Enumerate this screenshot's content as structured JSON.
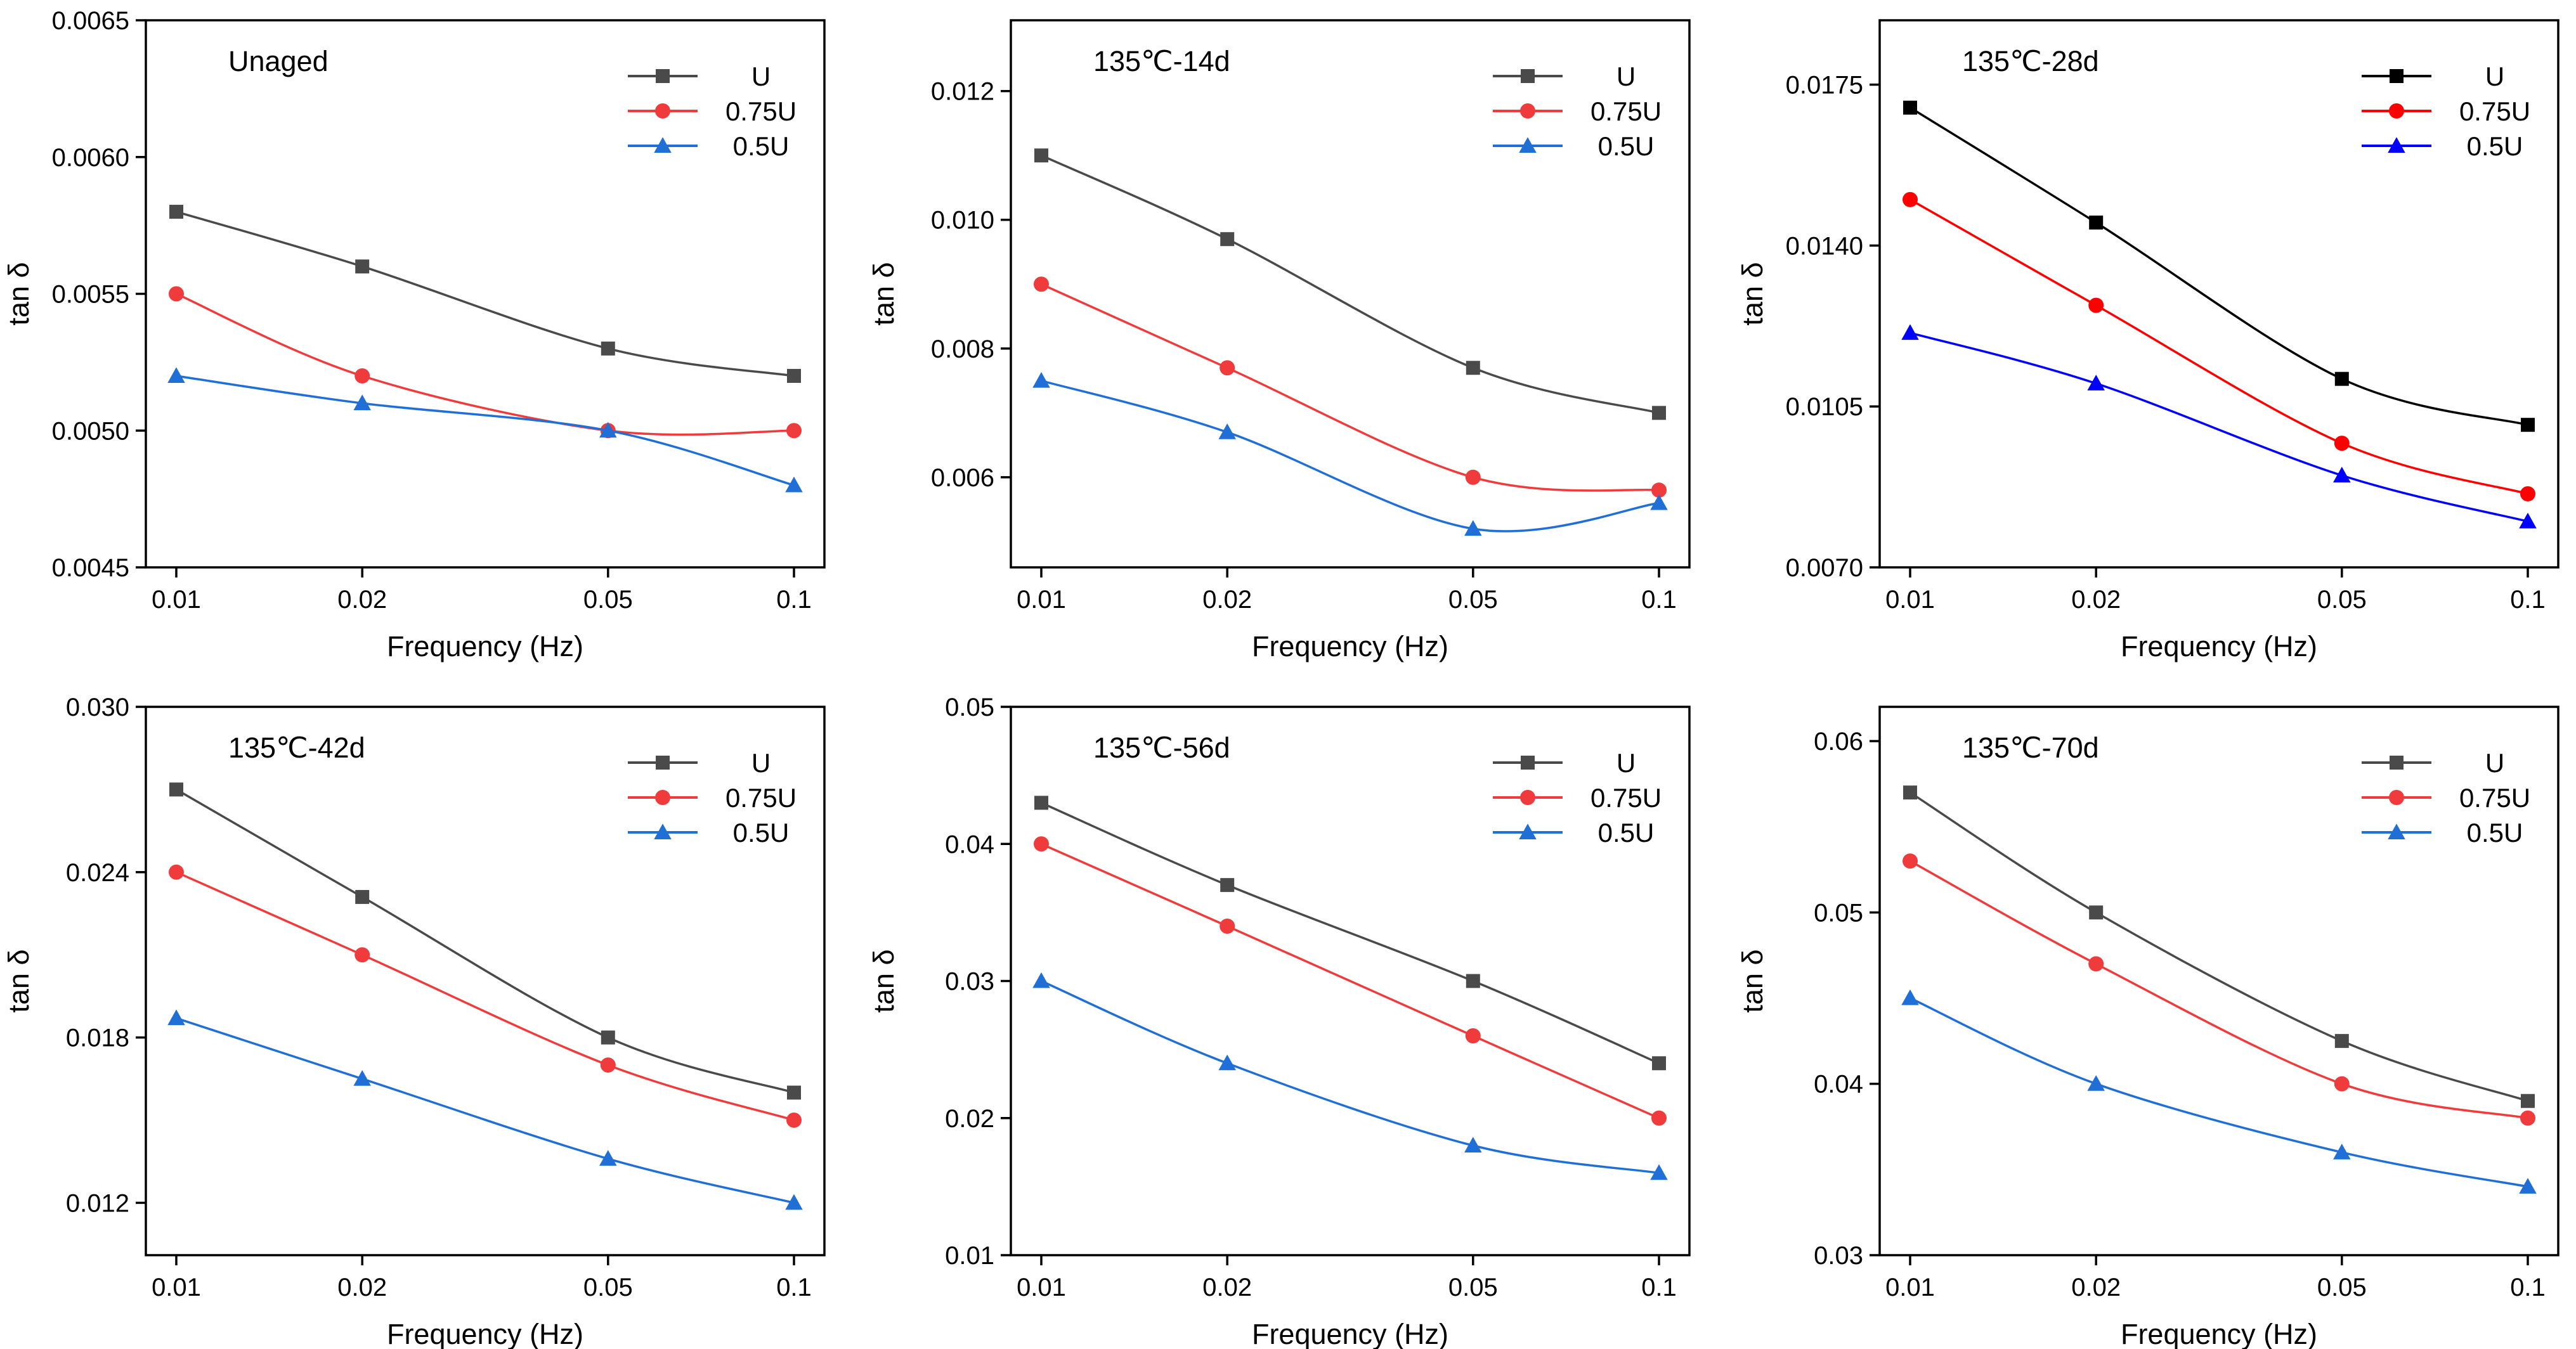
{
  "chart_data": [
    {
      "type": "line",
      "title": "Unaged",
      "xlabel": "Frequency (Hz)",
      "ylabel": "tan δ",
      "xscale": "log",
      "x": [
        0.01,
        0.02,
        0.05,
        0.1
      ],
      "x_tick_labels": [
        "0.01",
        "0.02",
        "0.05",
        "0.1"
      ],
      "ylim": [
        0.0045,
        0.0065
      ],
      "y_ticks": [
        0.0045,
        0.005,
        0.0055,
        0.006,
        0.0065
      ],
      "y_tick_labels": [
        "0.0045",
        "0.0050",
        "0.0055",
        "0.0060",
        "0.0065"
      ],
      "legend_position": "top-right",
      "series": [
        {
          "name": "U",
          "color": "#4a4a4a",
          "marker": "square",
          "values": [
            0.0058,
            0.0056,
            0.0053,
            0.0052
          ]
        },
        {
          "name": "0.75U",
          "color": "#ef3b3b",
          "marker": "circle",
          "values": [
            0.0055,
            0.0052,
            0.005,
            0.005
          ]
        },
        {
          "name": "0.5U",
          "color": "#1f6fd6",
          "marker": "triangle",
          "values": [
            0.0052,
            0.0051,
            0.005,
            0.0048
          ]
        }
      ]
    },
    {
      "type": "line",
      "title": "135℃-14d",
      "xlabel": "Frequency (Hz)",
      "ylabel": "tan δ",
      "xscale": "log",
      "x": [
        0.01,
        0.02,
        0.05,
        0.1
      ],
      "x_tick_labels": [
        "0.01",
        "0.02",
        "0.05",
        "0.1"
      ],
      "ylim": [
        0.0046,
        0.0131
      ],
      "y_ticks": [
        0.006,
        0.008,
        0.01,
        0.012
      ],
      "y_tick_labels": [
        "0.006",
        "0.008",
        "0.010",
        "0.012"
      ],
      "legend_position": "top-right",
      "series": [
        {
          "name": "U",
          "color": "#4a4a4a",
          "marker": "square",
          "values": [
            0.011,
            0.0097,
            0.0077,
            0.007
          ]
        },
        {
          "name": "0.75U",
          "color": "#ef3b3b",
          "marker": "circle",
          "values": [
            0.009,
            0.0077,
            0.006,
            0.0058
          ]
        },
        {
          "name": "0.5U",
          "color": "#1f6fd6",
          "marker": "triangle",
          "values": [
            0.0075,
            0.0067,
            0.0052,
            0.0056
          ]
        }
      ]
    },
    {
      "type": "line",
      "title": "135℃-28d",
      "xlabel": "Frequency (Hz)",
      "ylabel": "tan δ",
      "xscale": "log",
      "x": [
        0.01,
        0.02,
        0.05,
        0.1
      ],
      "x_tick_labels": [
        "0.01",
        "0.02",
        "0.05",
        "0.1"
      ],
      "ylim": [
        0.007,
        0.0189
      ],
      "y_ticks": [
        0.007,
        0.0105,
        0.014,
        0.0175
      ],
      "y_tick_labels": [
        "0.0070",
        "0.0105",
        "0.0140",
        "0.0175"
      ],
      "legend_position": "top-right",
      "series": [
        {
          "name": "U",
          "color": "#000000",
          "marker": "square",
          "values": [
            0.017,
            0.0145,
            0.0111,
            0.0101
          ]
        },
        {
          "name": "0.75U",
          "color": "#ff0000",
          "marker": "circle",
          "values": [
            0.015,
            0.0127,
            0.0097,
            0.0086
          ]
        },
        {
          "name": "0.5U",
          "color": "#0000ff",
          "marker": "triangle",
          "values": [
            0.0121,
            0.011,
            0.009,
            0.008
          ]
        }
      ]
    },
    {
      "type": "line",
      "title": "135℃-42d",
      "xlabel": "Frequency (Hz)",
      "ylabel": "tan δ",
      "xscale": "log",
      "x": [
        0.01,
        0.02,
        0.05,
        0.1
      ],
      "x_tick_labels": [
        "0.01",
        "0.02",
        "0.05",
        "0.1"
      ],
      "ylim": [
        0.0101,
        0.03
      ],
      "y_ticks": [
        0.012,
        0.018,
        0.024,
        0.03
      ],
      "y_tick_labels": [
        "0.012",
        "0.018",
        "0.024",
        "0.030"
      ],
      "legend_position": "top-right",
      "series": [
        {
          "name": "U",
          "color": "#4a4a4a",
          "marker": "square",
          "values": [
            0.027,
            0.0231,
            0.018,
            0.016
          ]
        },
        {
          "name": "0.75U",
          "color": "#ef3b3b",
          "marker": "circle",
          "values": [
            0.024,
            0.021,
            0.017,
            0.015
          ]
        },
        {
          "name": "0.5U",
          "color": "#1f6fd6",
          "marker": "triangle",
          "values": [
            0.0187,
            0.0165,
            0.0136,
            0.012
          ]
        }
      ]
    },
    {
      "type": "line",
      "title": "135℃-56d",
      "xlabel": "Frequency (Hz)",
      "ylabel": "tan δ",
      "xscale": "log",
      "x": [
        0.01,
        0.02,
        0.05,
        0.1
      ],
      "x_tick_labels": [
        "0.01",
        "0.02",
        "0.05",
        "0.1"
      ],
      "ylim": [
        0.01,
        0.05
      ],
      "y_ticks": [
        0.01,
        0.02,
        0.03,
        0.04,
        0.05
      ],
      "y_tick_labels": [
        "0.01",
        "0.02",
        "0.03",
        "0.04",
        "0.05"
      ],
      "legend_position": "top-right",
      "series": [
        {
          "name": "U",
          "color": "#4a4a4a",
          "marker": "square",
          "values": [
            0.043,
            0.037,
            0.03,
            0.024
          ]
        },
        {
          "name": "0.75U",
          "color": "#ef3b3b",
          "marker": "circle",
          "values": [
            0.04,
            0.034,
            0.026,
            0.02
          ]
        },
        {
          "name": "0.5U",
          "color": "#1f6fd6",
          "marker": "triangle",
          "values": [
            0.03,
            0.024,
            0.018,
            0.016
          ]
        }
      ]
    },
    {
      "type": "line",
      "title": "135℃-70d",
      "xlabel": "Frequency (Hz)",
      "ylabel": "tan δ",
      "xscale": "log",
      "x": [
        0.01,
        0.02,
        0.05,
        0.1
      ],
      "x_tick_labels": [
        "0.01",
        "0.02",
        "0.05",
        "0.1"
      ],
      "ylim": [
        0.03,
        0.062
      ],
      "y_ticks": [
        0.03,
        0.04,
        0.05,
        0.06
      ],
      "y_tick_labels": [
        "0.03",
        "0.04",
        "0.05",
        "0.06"
      ],
      "legend_position": "top-right",
      "series": [
        {
          "name": "U",
          "color": "#4a4a4a",
          "marker": "square",
          "values": [
            0.057,
            0.05,
            0.0425,
            0.039
          ]
        },
        {
          "name": "0.75U",
          "color": "#ef3b3b",
          "marker": "circle",
          "values": [
            0.053,
            0.047,
            0.04,
            0.038
          ]
        },
        {
          "name": "0.5U",
          "color": "#1f6fd6",
          "marker": "triangle",
          "values": [
            0.045,
            0.04,
            0.036,
            0.034
          ]
        }
      ]
    }
  ]
}
